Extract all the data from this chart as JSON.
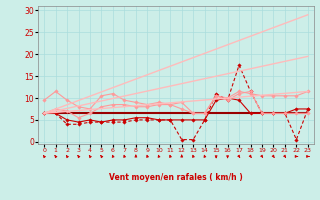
{
  "bg_color": "#cceee8",
  "grid_color": "#aadddd",
  "xlabel": "Vent moyen/en rafales ( km/h )",
  "ylabel_ticks": [
    0,
    5,
    10,
    15,
    20,
    25,
    30
  ],
  "xlim": [
    -0.5,
    23.5
  ],
  "ylim": [
    -0.5,
    31
  ],
  "x_ticks": [
    0,
    1,
    2,
    3,
    4,
    5,
    6,
    7,
    8,
    9,
    10,
    11,
    12,
    13,
    14,
    15,
    16,
    17,
    18,
    19,
    20,
    21,
    22,
    23
  ],
  "series": [
    {
      "x": [
        0,
        1,
        2,
        3,
        4,
        5,
        6,
        7,
        8,
        9,
        10,
        11,
        12,
        13,
        14,
        15,
        16,
        17,
        18,
        19,
        20,
        21,
        22,
        23
      ],
      "y": [
        6.5,
        6.5,
        6.5,
        6.5,
        6.5,
        6.5,
        6.5,
        6.5,
        6.5,
        6.5,
        6.5,
        6.5,
        6.5,
        6.5,
        6.5,
        6.5,
        6.5,
        6.5,
        6.5,
        6.5,
        6.5,
        6.5,
        6.5,
        6.5
      ],
      "color": "#990000",
      "lw": 1.5,
      "marker": null,
      "dashes": null,
      "ms": 0
    },
    {
      "x": [
        0,
        1,
        2,
        3,
        4,
        5,
        6,
        7,
        8,
        9,
        10,
        11,
        12,
        13,
        14,
        15,
        16,
        17,
        18,
        19,
        20,
        21,
        22,
        23
      ],
      "y": [
        6.5,
        6.5,
        5.0,
        4.5,
        5.0,
        4.5,
        5.0,
        5.0,
        5.5,
        5.5,
        5.0,
        5.0,
        5.0,
        5.0,
        5.0,
        9.5,
        10.0,
        9.5,
        6.5,
        6.5,
        6.5,
        6.5,
        7.5,
        7.5
      ],
      "color": "#cc0000",
      "lw": 0.8,
      "marker": "D",
      "dashes": null,
      "ms": 1.8
    },
    {
      "x": [
        0,
        1,
        2,
        3,
        4,
        5,
        6,
        7,
        8,
        9,
        10,
        11,
        12,
        13,
        14,
        15,
        16,
        17,
        18,
        19,
        20,
        21,
        22,
        23
      ],
      "y": [
        6.5,
        6.5,
        4.0,
        4.0,
        4.5,
        4.5,
        4.5,
        4.5,
        5.0,
        5.0,
        5.0,
        5.0,
        0.5,
        0.5,
        5.0,
        11.0,
        9.5,
        17.5,
        11.5,
        6.5,
        6.5,
        6.5,
        0.5,
        7.5
      ],
      "color": "#cc0000",
      "lw": 0.8,
      "marker": "D",
      "dashes": [
        3,
        2
      ],
      "ms": 1.8
    },
    {
      "x": [
        0,
        1,
        2,
        3,
        4,
        5,
        6,
        7,
        8,
        9,
        10,
        11,
        12,
        13,
        14,
        15,
        16,
        17,
        18,
        19,
        20,
        21,
        22,
        23
      ],
      "y": [
        9.5,
        11.5,
        9.5,
        8.0,
        7.5,
        10.5,
        11.0,
        9.5,
        9.0,
        8.5,
        9.0,
        8.5,
        9.0,
        6.5,
        6.5,
        10.5,
        10.0,
        11.5,
        11.0,
        10.5,
        10.5,
        10.5,
        10.5,
        11.5
      ],
      "color": "#ff9999",
      "lw": 0.8,
      "marker": "D",
      "dashes": null,
      "ms": 1.8
    },
    {
      "x": [
        0,
        1,
        2,
        3,
        4,
        5,
        6,
        7,
        8,
        9,
        10,
        11,
        12,
        13,
        14,
        15,
        16,
        17,
        18,
        19,
        20,
        21,
        22,
        23
      ],
      "y": [
        6.5,
        7.5,
        7.0,
        5.5,
        6.5,
        8.0,
        8.5,
        8.5,
        8.0,
        8.0,
        8.5,
        8.5,
        7.5,
        6.5,
        6.5,
        10.5,
        9.5,
        11.0,
        11.5,
        6.5,
        6.5,
        6.5,
        6.5,
        6.5
      ],
      "color": "#ff9999",
      "lw": 0.8,
      "marker": "D",
      "dashes": null,
      "ms": 1.8
    },
    {
      "x": [
        0,
        23
      ],
      "y": [
        6.5,
        11.5
      ],
      "color": "#ffbbbb",
      "lw": 1.0,
      "marker": null,
      "dashes": null,
      "ms": 0
    },
    {
      "x": [
        0,
        23
      ],
      "y": [
        6.5,
        19.5
      ],
      "color": "#ffbbbb",
      "lw": 1.0,
      "marker": null,
      "dashes": null,
      "ms": 0
    },
    {
      "x": [
        0,
        23
      ],
      "y": [
        6.5,
        29.0
      ],
      "color": "#ffbbbb",
      "lw": 1.0,
      "marker": null,
      "dashes": null,
      "ms": 0
    }
  ],
  "wind_arrows": {
    "x": [
      0,
      1,
      2,
      3,
      4,
      5,
      6,
      7,
      8,
      9,
      10,
      11,
      12,
      13,
      14,
      15,
      16,
      17,
      18,
      19,
      20,
      21,
      22,
      23
    ],
    "angles_deg": [
      225,
      225,
      225,
      225,
      225,
      225,
      202,
      202,
      180,
      202,
      202,
      202,
      180,
      202,
      202,
      0,
      0,
      45,
      45,
      45,
      45,
      45,
      90,
      90
    ],
    "color": "#cc0000"
  }
}
